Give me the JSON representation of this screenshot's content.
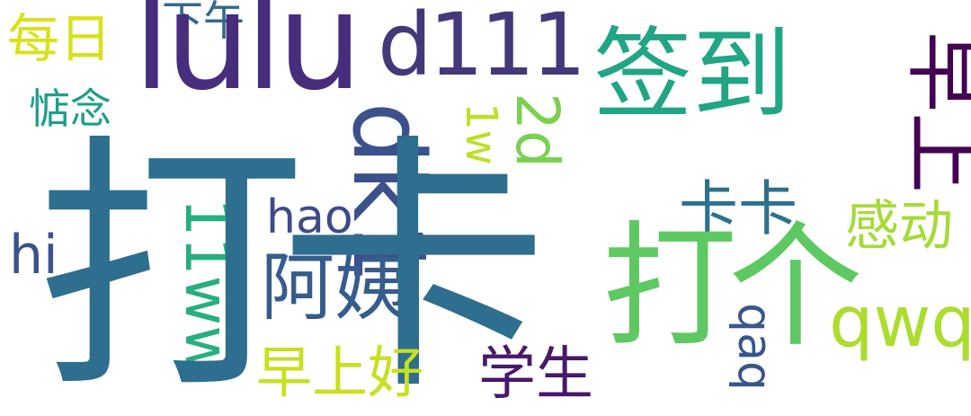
{
  "words": {
    "daka": {
      "text": "打卡",
      "color": "#2e6e8e"
    },
    "lulu": {
      "text": "lulu",
      "color": "#472d7b"
    },
    "qiandao": {
      "text": "签到",
      "color": "#21a585"
    },
    "dage": {
      "text": "打个",
      "color": "#5ec962"
    },
    "d111": {
      "text": "d111",
      "color": "#44387a"
    },
    "dk1": {
      "text": "dk1",
      "color": "#3b518b"
    },
    "ayi": {
      "text": "阿姨",
      "color": "#365c8d"
    },
    "zaoshang": {
      "text": "早上",
      "color": "#440154"
    },
    "qwq": {
      "text": "qwq",
      "color": "#addc30"
    },
    "11ww": {
      "text": "11ww",
      "color": "#28ae80"
    },
    "zaoshanghao": {
      "text": "早上好",
      "color": "#c8e020"
    },
    "xuesheng": {
      "text": "学生",
      "color": "#48186a"
    },
    "kaka": {
      "text": "卡卡",
      "color": "#2c728e"
    },
    "2d": {
      "text": "2d",
      "color": "#7ad151"
    },
    "hao": {
      "text": "hao",
      "color": "#3e4a89"
    },
    "hi": {
      "text": "hi",
      "color": "#3b528b"
    },
    "gandong": {
      "text": "感动",
      "color": "#a5db36"
    },
    "meiri": {
      "text": "每日",
      "color": "#d8e219"
    },
    "xiawu": {
      "text": "下午",
      "color": "#31688e"
    },
    "dianian": {
      "text": "惦念",
      "color": "#1f9e89"
    },
    "qaq": {
      "text": "qaq",
      "color": "#39568c"
    },
    "1w": {
      "text": "1w",
      "color": "#bddf26"
    }
  }
}
